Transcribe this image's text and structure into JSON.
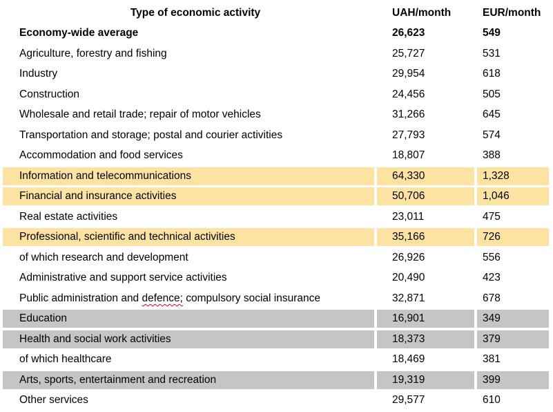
{
  "table": {
    "headers": {
      "activity": "Type of economic activity",
      "uah": "UAH/month",
      "eur": "EUR/month"
    },
    "colors": {
      "highlight_yellow": "#fce3a1",
      "highlight_gray": "#c5c5c5",
      "spellcheck_red": "#e2001a"
    },
    "rows": [
      {
        "activity": "Economy-wide average",
        "uah": "26,623",
        "eur": "549",
        "style": "bold"
      },
      {
        "activity": "Agriculture, forestry and fishing",
        "uah": "25,727",
        "eur": "531",
        "style": "none"
      },
      {
        "activity": "Industry",
        "uah": "29,954",
        "eur": "618",
        "style": "none"
      },
      {
        "activity": "Construction",
        "uah": "24,456",
        "eur": "505",
        "style": "none"
      },
      {
        "activity": "Wholesale and retail trade; repair of motor vehicles",
        "uah": "31,266",
        "eur": "645",
        "style": "none"
      },
      {
        "activity": "Transportation and storage; postal and courier activities",
        "uah": "27,793",
        "eur": "574",
        "style": "none"
      },
      {
        "activity": "Accommodation and food services",
        "uah": "18,807",
        "eur": "388",
        "style": "none"
      },
      {
        "activity": "Information and telecommunications",
        "uah": "64,330",
        "eur": "1,328",
        "style": "highlight-yellow"
      },
      {
        "activity": "Financial and insurance activities",
        "uah": "50,706",
        "eur": "1,046",
        "style": "highlight-yellow"
      },
      {
        "activity": "Real estate activities",
        "uah": "23,011",
        "eur": "475",
        "style": "none"
      },
      {
        "activity": "Professional, scientific and technical activities",
        "uah": "35,166",
        "eur": "726",
        "style": "highlight-yellow"
      },
      {
        "activity": "of which research and development",
        "uah": "26,926",
        "eur": "556",
        "style": "none"
      },
      {
        "activity": "Administrative and support service activities",
        "uah": "20,490",
        "eur": "423",
        "style": "none"
      },
      {
        "activity": "Public administration and defence; compulsory social insurance",
        "uah": "32,871",
        "eur": "678",
        "style": "none",
        "spellcheck_word": "defence;"
      },
      {
        "activity": "Education",
        "uah": "16,901",
        "eur": "349",
        "style": "highlight-gray"
      },
      {
        "activity": "Health and social work activities",
        "uah": "18,373",
        "eur": "379",
        "style": "highlight-gray"
      },
      {
        "activity": "of which healthcare",
        "uah": "18,469",
        "eur": "381",
        "style": "none"
      },
      {
        "activity": "Arts, sports, entertainment and recreation",
        "uah": "19,319",
        "eur": "399",
        "style": "highlight-gray"
      },
      {
        "activity": "Other services",
        "uah": "29,577",
        "eur": "610",
        "style": "none"
      }
    ]
  }
}
